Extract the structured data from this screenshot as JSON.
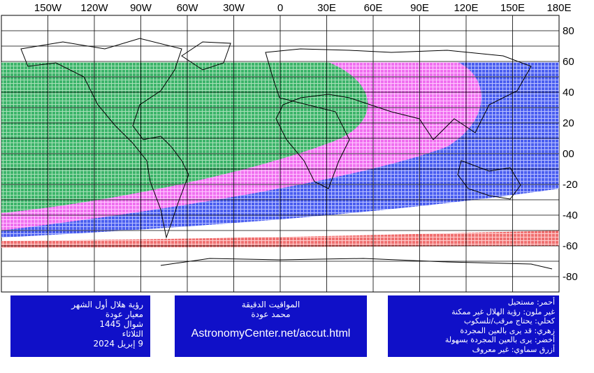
{
  "map": {
    "lon_labels": [
      "150W",
      "120W",
      "90W",
      "60W",
      "30W",
      "0",
      "30E",
      "60E",
      "90E",
      "120E",
      "150E",
      "180E"
    ],
    "lat_labels": [
      "80",
      "60",
      "40",
      "20",
      "00",
      "-20",
      "-40",
      "-60",
      "-80"
    ]
  },
  "left_box": {
    "lines": [
      "رؤية هلال أول الشهر",
      "معيار عودة",
      "شوال 1445",
      "الثلاثاء",
      "9 إبريل 2024"
    ]
  },
  "center_box": {
    "lines": [
      "المواقيت الدقيقة",
      "محمد عودة",
      "AstronomyCenter.net/accut.html"
    ]
  },
  "right_box": {
    "lines": [
      "أحمر: مستحيل",
      "غير ملون: رؤية الهلال غير ممكنة",
      "كحلي: يحتاج مرقب/تلسكوب",
      "زهري: قد يرى بالعين المجردة",
      "أخضر: يرى بالعين المجردة بسهولة",
      "أزرق سماوي: غير معروف"
    ]
  }
}
